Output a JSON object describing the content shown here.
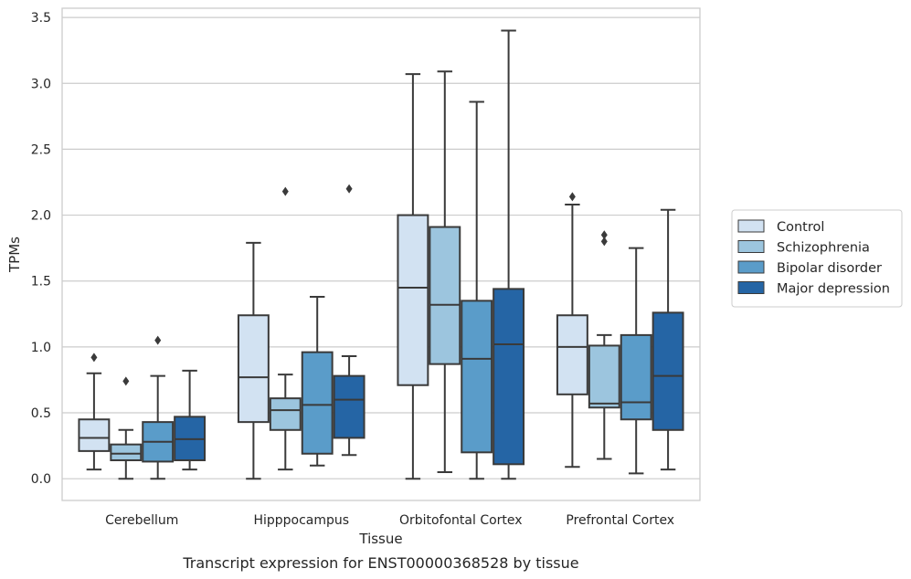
{
  "caption": "Transcript expression for ENST00000368528 by tissue",
  "chart_data": {
    "type": "box",
    "xlabel": "Tissue",
    "ylabel": "TPMs",
    "ylim": [
      -0.165,
      3.57
    ],
    "yticks": [
      0.0,
      0.5,
      1.0,
      1.5,
      2.0,
      2.5,
      3.0,
      3.5
    ],
    "ytick_labels": [
      "0.0",
      "0.5",
      "1.0",
      "1.5",
      "2.0",
      "2.5",
      "3.0",
      "3.5"
    ],
    "grid": "horizontal",
    "legend_position": "right",
    "categories": [
      "Cerebellum",
      "Hipppocampus",
      "Orbitofontal Cortex",
      "Prefrontal Cortex"
    ],
    "series": [
      {
        "name": "Control",
        "color": "#d2e2f2",
        "boxes": [
          {
            "whislo": 0.07,
            "q1": 0.21,
            "med": 0.31,
            "q3": 0.45,
            "whishi": 0.8,
            "fliers": [
              0.92
            ]
          },
          {
            "whislo": 0.0,
            "q1": 0.43,
            "med": 0.77,
            "q3": 1.24,
            "whishi": 1.79,
            "fliers": []
          },
          {
            "whislo": 0.0,
            "q1": 0.71,
            "med": 1.45,
            "q3": 2.0,
            "whishi": 3.07,
            "fliers": []
          },
          {
            "whislo": 0.09,
            "q1": 0.64,
            "med": 1.0,
            "q3": 1.24,
            "whishi": 2.08,
            "fliers": [
              2.14
            ]
          }
        ]
      },
      {
        "name": "Schizophrenia",
        "color": "#9cc5de",
        "boxes": [
          {
            "whislo": 0.0,
            "q1": 0.14,
            "med": 0.19,
            "q3": 0.26,
            "whishi": 0.37,
            "fliers": [
              0.74
            ]
          },
          {
            "whislo": 0.07,
            "q1": 0.37,
            "med": 0.52,
            "q3": 0.61,
            "whishi": 0.79,
            "fliers": [
              2.18
            ]
          },
          {
            "whislo": 0.05,
            "q1": 0.87,
            "med": 1.32,
            "q3": 1.91,
            "whishi": 3.09,
            "fliers": []
          },
          {
            "whislo": 0.15,
            "q1": 0.54,
            "med": 0.57,
            "q3": 1.01,
            "whishi": 1.09,
            "fliers": [
              1.8,
              1.85
            ]
          }
        ]
      },
      {
        "name": "Bipolar disorder",
        "color": "#5a9cc9",
        "boxes": [
          {
            "whislo": 0.0,
            "q1": 0.13,
            "med": 0.28,
            "q3": 0.43,
            "whishi": 0.78,
            "fliers": [
              1.05
            ]
          },
          {
            "whislo": 0.1,
            "q1": 0.19,
            "med": 0.56,
            "q3": 0.96,
            "whishi": 1.38,
            "fliers": []
          },
          {
            "whislo": 0.0,
            "q1": 0.2,
            "med": 0.91,
            "q3": 1.35,
            "whishi": 2.86,
            "fliers": []
          },
          {
            "whislo": 0.04,
            "q1": 0.45,
            "med": 0.58,
            "q3": 1.09,
            "whishi": 1.75,
            "fliers": []
          }
        ]
      },
      {
        "name": "Major depression",
        "color": "#2565a5",
        "boxes": [
          {
            "whislo": 0.07,
            "q1": 0.14,
            "med": 0.3,
            "q3": 0.47,
            "whishi": 0.82,
            "fliers": []
          },
          {
            "whislo": 0.18,
            "q1": 0.31,
            "med": 0.6,
            "q3": 0.78,
            "whishi": 0.93,
            "fliers": [
              2.2
            ]
          },
          {
            "whislo": 0.0,
            "q1": 0.11,
            "med": 1.02,
            "q3": 1.44,
            "whishi": 3.4,
            "fliers": []
          },
          {
            "whislo": 0.07,
            "q1": 0.37,
            "med": 0.78,
            "q3": 1.26,
            "whishi": 2.04,
            "fliers": []
          }
        ]
      }
    ]
  }
}
